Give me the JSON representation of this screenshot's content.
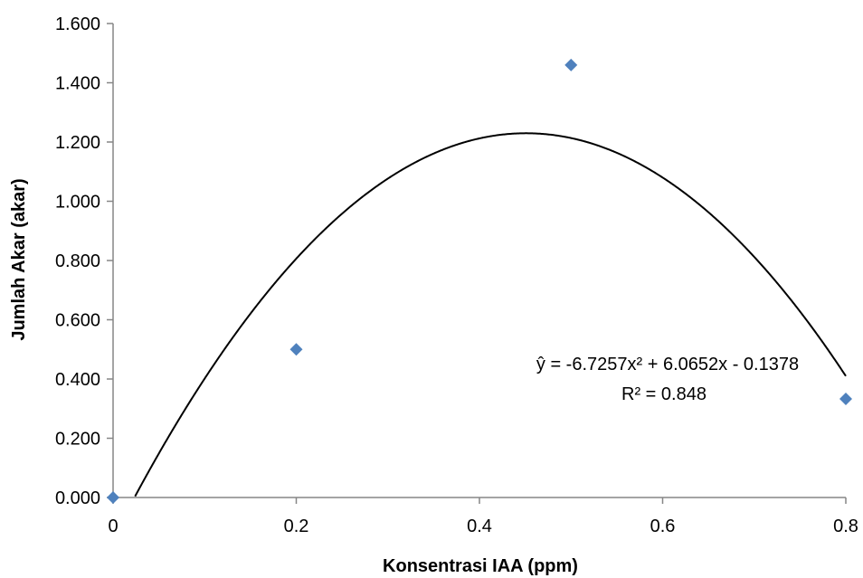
{
  "chart_data": {
    "type": "scatter",
    "title": "",
    "xlabel": "Konsentrasi IAA (ppm)",
    "ylabel": "Jumlah Akar (akar)",
    "xlim": [
      0,
      0.8
    ],
    "ylim": [
      0,
      1.6
    ],
    "x_ticks": [
      "0",
      "0.2",
      "0.4",
      "0.6",
      "0.8"
    ],
    "y_ticks": [
      "0.000",
      "0.200",
      "0.400",
      "0.600",
      "0.800",
      "1.000",
      "1.200",
      "1.400",
      "1.600"
    ],
    "grid": false,
    "legend": "none",
    "series": [
      {
        "type": "scatter",
        "marker": "diamond",
        "color": "#4f81bd",
        "x": [
          0,
          0.2,
          0.5,
          0.8
        ],
        "y": [
          0.0,
          0.5,
          1.46,
          0.333
        ]
      }
    ],
    "trendline": {
      "type": "polynomial",
      "order": 2,
      "coefficients": [
        -6.7257,
        6.0652,
        -0.1378
      ],
      "color": "#000000",
      "equation_label": "ŷ = -6.7257x² + 6.0652x - 0.1378",
      "r2_label": "R² = 0.848"
    }
  }
}
